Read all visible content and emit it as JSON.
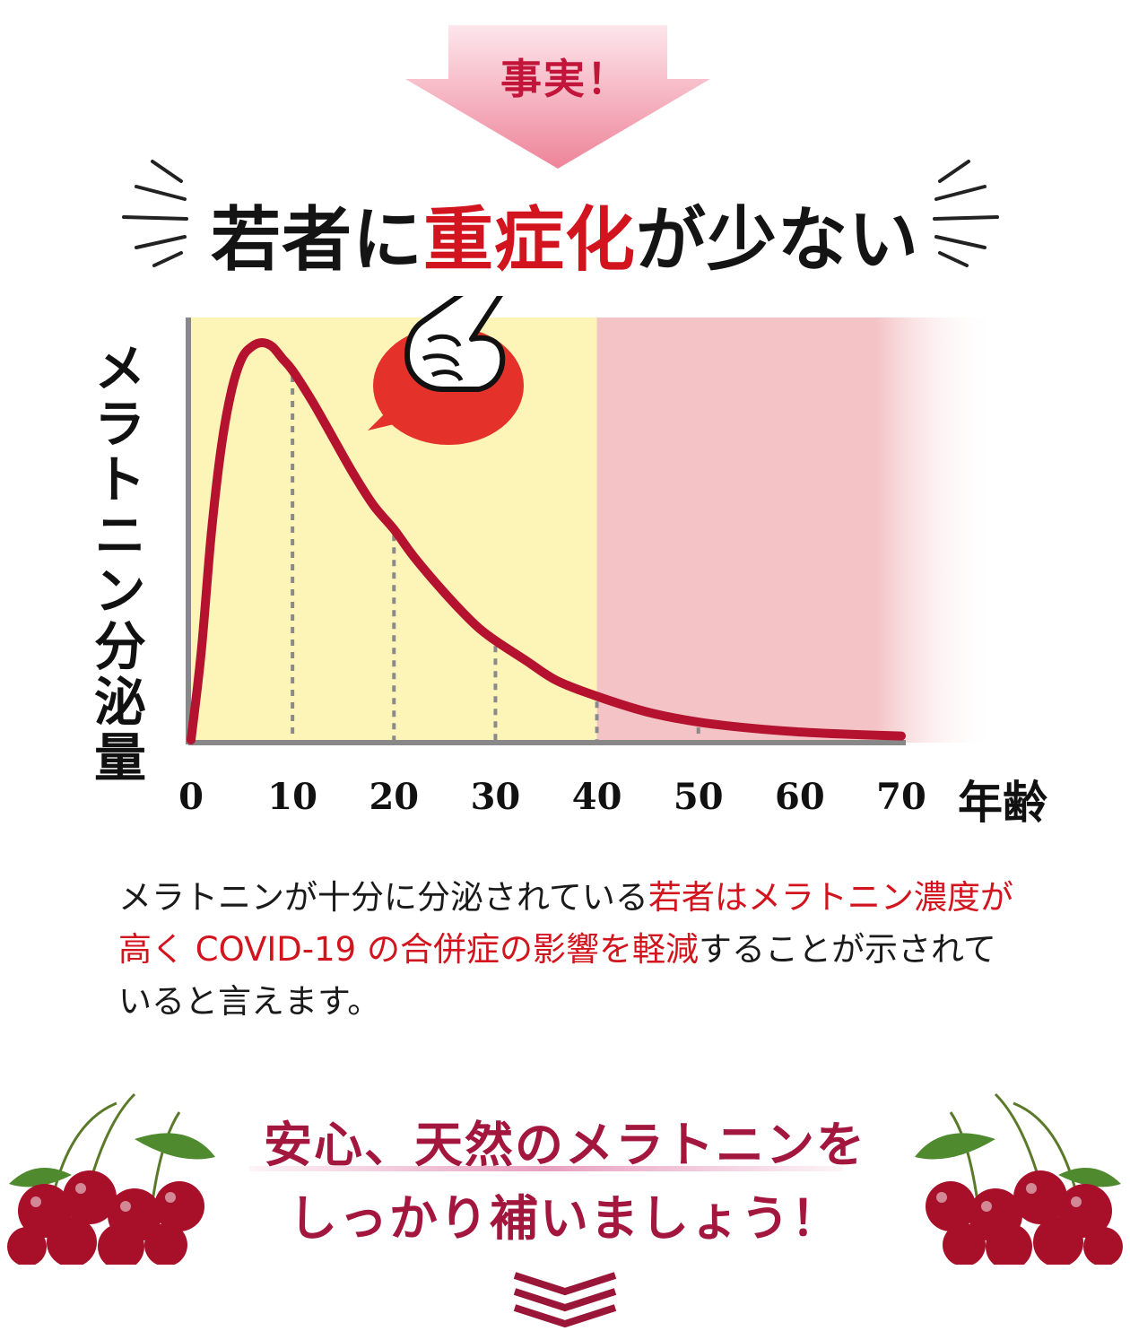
{
  "banner": {
    "label": "事実！"
  },
  "headline": {
    "part1": "若者に",
    "part2": "重症化",
    "part3": "が少ない"
  },
  "chart_data": {
    "type": "line",
    "xlabel": "年齢",
    "ylabel": "メラトニン分泌量",
    "x_ticks": [
      "0",
      "10",
      "20",
      "30",
      "40",
      "50",
      "60",
      "70"
    ],
    "xlim": [
      0,
      70
    ],
    "ylim": [
      0,
      1
    ],
    "series": [
      {
        "x": [
          0,
          1,
          2,
          3,
          4,
          5,
          6,
          7,
          8,
          9,
          10,
          12,
          14,
          16,
          18,
          20,
          22,
          25,
          28,
          30,
          33,
          36,
          40,
          45,
          50,
          55,
          60,
          65,
          70
        ],
        "values": [
          0,
          0.22,
          0.52,
          0.74,
          0.88,
          0.96,
          0.99,
          1.0,
          0.99,
          0.96,
          0.93,
          0.85,
          0.76,
          0.67,
          0.59,
          0.53,
          0.46,
          0.37,
          0.29,
          0.25,
          0.2,
          0.15,
          0.11,
          0.07,
          0.045,
          0.03,
          0.02,
          0.014,
          0.01
        ]
      }
    ],
    "dashed_guides_x": [
      10,
      20,
      30,
      40,
      50
    ],
    "shaded_regions": [
      {
        "from": 0,
        "to": 40,
        "color": "#fdf5b8"
      },
      {
        "from": 40,
        "to": 70,
        "color": "#f4c3c6"
      }
    ],
    "line_color": "#b5122f"
  },
  "body": {
    "seg1": "メラトニンが十分に分泌されている",
    "seg2": "若者はメラトニン濃度が高く COVID-19 の合併症の影響を軽減",
    "seg3": "することが示されていると言えます。"
  },
  "cta": {
    "line1": "安心、天然のメラトニンを",
    "line2": "しっかり補いましょう！"
  },
  "icons": [
    "pointing-hand-icon",
    "speech-bubble-icon",
    "chevron-down-icon",
    "cherries-icon"
  ],
  "colors": {
    "accent": "#d2141e",
    "cta": "#a3163e",
    "arrow": "#f08aa0"
  }
}
